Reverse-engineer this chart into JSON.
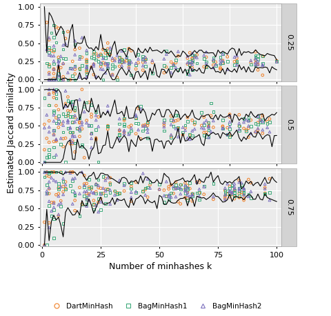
{
  "true_similarities": [
    0.25,
    0.5,
    0.75
  ],
  "facet_labels": [
    "0.25",
    "0.5",
    "0.75"
  ],
  "xlabel": "Number of minhashes k",
  "ylabel": "Estimated Jaccard similarity",
  "ylim": [
    -0.02,
    1.05
  ],
  "xlim": [
    -1,
    102
  ],
  "yticks": [
    0.0,
    0.25,
    0.5,
    0.75,
    1.0
  ],
  "xticks": [
    0,
    25,
    50,
    75,
    100
  ],
  "colors": {
    "orange": "#F07F25",
    "green": "#3DAA7A",
    "purple": "#7B6FBE",
    "black": "#000000"
  },
  "legend_labels": [
    "DartMinHash",
    "BagMinHash1",
    "BagMinHash2"
  ],
  "background_color": "#EBEBEB",
  "grid_color": "#FFFFFF",
  "marker_size": 7,
  "seed": 42
}
